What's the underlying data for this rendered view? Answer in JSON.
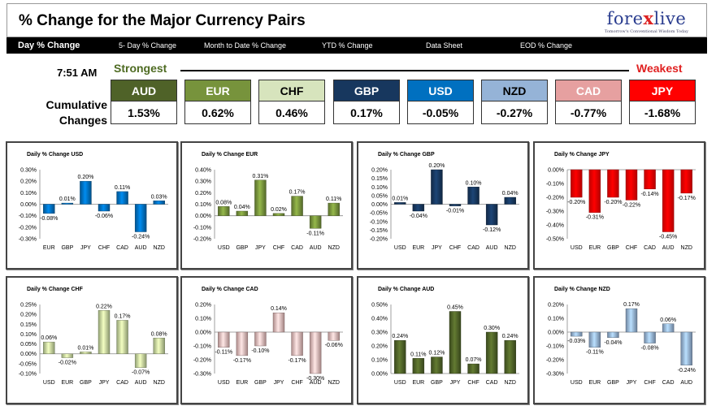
{
  "header": {
    "title": "% Change for the Major Currency Pairs",
    "logo_main": "fore",
    "logo_x": "x",
    "logo_end": "live",
    "logo_tagline": "Tomorrow's Conventional Wisdom Today"
  },
  "nav": {
    "tabs": [
      {
        "label": "Day % Change",
        "active": true
      },
      {
        "label": "5- Day % Change",
        "active": false
      },
      {
        "label": "Month to Date % Change",
        "active": false
      },
      {
        "label": "YTD % Change",
        "active": false
      },
      {
        "label": "Data Sheet",
        "active": false
      },
      {
        "label": "EOD % Change",
        "active": false
      }
    ]
  },
  "summary": {
    "time": "7:51 AM",
    "strongest_label": "Strongest",
    "weakest_label": "Weakest",
    "cumulative_label": "Cumulative Changes",
    "currencies": [
      {
        "code": "AUD",
        "value": "1.53%",
        "color": "#4f6228",
        "text_color": "#ffffff"
      },
      {
        "code": "EUR",
        "value": "0.62%",
        "color": "#77933c",
        "text_color": "#ffffff"
      },
      {
        "code": "CHF",
        "value": "0.46%",
        "color": "#d7e4bd",
        "text_color": "#000000"
      },
      {
        "code": "GBP",
        "value": "0.17%",
        "color": "#17375e",
        "text_color": "#ffffff"
      },
      {
        "code": "USD",
        "value": "-0.05%",
        "color": "#0070c0",
        "text_color": "#ffffff"
      },
      {
        "code": "NZD",
        "value": "-0.27%",
        "color": "#95b3d7",
        "text_color": "#000000"
      },
      {
        "code": "CAD",
        "value": "-0.77%",
        "color": "#e6a0a0",
        "text_color": "#ffffff"
      },
      {
        "code": "JPY",
        "value": "-1.68%",
        "color": "#ff0000",
        "text_color": "#ffffff"
      }
    ]
  },
  "chart_data": [
    {
      "type": "bar",
      "title": "Daily % Change USD",
      "categories": [
        "EUR",
        "GBP",
        "JPY",
        "CHF",
        "CAD",
        "AUD",
        "NZD"
      ],
      "values": [
        -0.08,
        0.01,
        0.2,
        -0.06,
        0.11,
        -0.24,
        0.03
      ],
      "labels": [
        "-0.08%",
        "0.01%",
        "0.20%",
        "-0.06%",
        "0.11%",
        "-0.24%",
        "0.03%"
      ],
      "ylim": [
        -0.3,
        0.3
      ],
      "yticks": [
        "0.30%",
        "0.20%",
        "0.10%",
        "0.00%",
        "-0.10%",
        "-0.20%",
        "-0.30%"
      ],
      "color": "#0070c0"
    },
    {
      "type": "bar",
      "title": "Daily % Change EUR",
      "categories": [
        "USD",
        "GBP",
        "JPY",
        "CHF",
        "CAD",
        "AUD",
        "NZD"
      ],
      "values": [
        0.08,
        0.04,
        0.31,
        0.02,
        0.17,
        -0.11,
        0.11
      ],
      "labels": [
        "0.08%",
        "0.04%",
        "0.31%",
        "0.02%",
        "0.17%",
        "-0.11%",
        "0.11%"
      ],
      "ylim": [
        -0.2,
        0.4
      ],
      "yticks": [
        "0.40%",
        "0.30%",
        "0.20%",
        "0.10%",
        "0.00%",
        "-0.10%",
        "-0.20%"
      ],
      "color": "#77933c"
    },
    {
      "type": "bar",
      "title": "Daily % Change GBP",
      "categories": [
        "USD",
        "EUR",
        "JPY",
        "CHF",
        "CAD",
        "AUD",
        "NZD"
      ],
      "values": [
        0.01,
        -0.04,
        0.2,
        -0.01,
        0.1,
        -0.12,
        0.04
      ],
      "labels": [
        "0.01%",
        "-0.04%",
        "0.20%",
        "-0.01%",
        "0.10%",
        "-0.12%",
        "0.04%"
      ],
      "ylim": [
        -0.2,
        0.2
      ],
      "yticks": [
        "0.20%",
        "0.15%",
        "0.10%",
        "0.05%",
        "0.00%",
        "-0.05%",
        "-0.10%",
        "-0.15%",
        "-0.20%"
      ],
      "color": "#17375e"
    },
    {
      "type": "bar",
      "title": "Daily % Change JPY",
      "categories": [
        "USD",
        "EUR",
        "GBP",
        "CHF",
        "CAD",
        "AUD",
        "NZD"
      ],
      "values": [
        -0.2,
        -0.31,
        -0.2,
        -0.22,
        -0.14,
        -0.45,
        -0.17
      ],
      "labels": [
        "-0.20%",
        "-0.31%",
        "-0.20%",
        "-0.22%",
        "-0.14%",
        "-0.45%",
        "-0.17%"
      ],
      "ylim": [
        -0.5,
        0.0
      ],
      "yticks": [
        "0.00%",
        "-0.10%",
        "-0.20%",
        "-0.30%",
        "-0.40%",
        "-0.50%"
      ],
      "color": "#ff0000"
    },
    {
      "type": "bar",
      "title": "Daily % Change CHF",
      "categories": [
        "USD",
        "EUR",
        "GBP",
        "JPY",
        "CAD",
        "AUD",
        "NZD"
      ],
      "values": [
        0.06,
        -0.02,
        0.01,
        0.22,
        0.17,
        -0.07,
        0.08
      ],
      "labels": [
        "0.06%",
        "-0.02%",
        "0.01%",
        "0.22%",
        "0.17%",
        "-0.07%",
        "0.08%"
      ],
      "ylim": [
        -0.1,
        0.25
      ],
      "yticks": [
        "0.25%",
        "0.20%",
        "0.15%",
        "0.10%",
        "0.05%",
        "0.00%",
        "-0.05%",
        "-0.10%"
      ],
      "color": "#c3d69b"
    },
    {
      "type": "bar",
      "title": "Daily % Change CAD",
      "categories": [
        "USD",
        "EUR",
        "GBP",
        "JPY",
        "CHF",
        "AUD",
        "NZD"
      ],
      "values": [
        -0.11,
        -0.17,
        -0.1,
        0.14,
        -0.17,
        -0.3,
        -0.06
      ],
      "labels": [
        "-0.11%",
        "-0.17%",
        "-0.10%",
        "0.14%",
        "-0.17%",
        "-0.30%",
        "-0.06%"
      ],
      "ylim": [
        -0.3,
        0.2
      ],
      "yticks": [
        "0.20%",
        "0.10%",
        "0.00%",
        "-0.10%",
        "-0.20%",
        "-0.30%"
      ],
      "color": "#e6b9b8"
    },
    {
      "type": "bar",
      "title": "Daily % Change AUD",
      "categories": [
        "USD",
        "EUR",
        "GBP",
        "JPY",
        "CHF",
        "CAD",
        "NZD"
      ],
      "values": [
        0.24,
        0.11,
        0.12,
        0.45,
        0.07,
        0.3,
        0.24
      ],
      "labels": [
        "0.24%",
        "0.11%",
        "0.12%",
        "0.45%",
        "0.07%",
        "0.30%",
        "0.24%"
      ],
      "ylim": [
        0.0,
        0.5
      ],
      "yticks": [
        "0.50%",
        "0.40%",
        "0.30%",
        "0.20%",
        "0.10%",
        "0.00%"
      ],
      "color": "#4f6228"
    },
    {
      "type": "bar",
      "title": "Daily % Change NZD",
      "categories": [
        "USD",
        "EUR",
        "GBP",
        "JPY",
        "CHF",
        "CAD",
        "AUD"
      ],
      "values": [
        -0.03,
        -0.11,
        -0.04,
        0.17,
        -0.08,
        0.06,
        -0.24
      ],
      "labels": [
        "-0.03%",
        "-0.11%",
        "-0.04%",
        "0.17%",
        "-0.08%",
        "0.06%",
        "-0.24%"
      ],
      "ylim": [
        -0.3,
        0.2
      ],
      "yticks": [
        "0.20%",
        "0.10%",
        "0.00%",
        "-0.10%",
        "-0.20%",
        "-0.30%"
      ],
      "color": "#95b3d7"
    }
  ]
}
